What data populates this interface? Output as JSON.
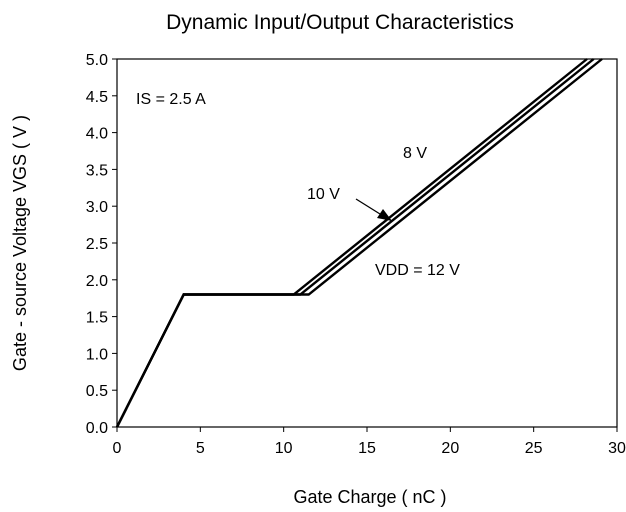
{
  "chart_data": {
    "type": "line",
    "title": "Dynamic Input/Output Characteristics",
    "xlabel": "Gate Charge ( nC )",
    "ylabel": "Gate - source Voltage VGS ( V )",
    "xlim": [
      0,
      30
    ],
    "ylim": [
      0,
      5.0
    ],
    "x_ticks": [
      0,
      5,
      10,
      15,
      20,
      25,
      30
    ],
    "y_ticks": [
      "0.0",
      "0.5",
      "1.0",
      "1.5",
      "2.0",
      "2.5",
      "3.0",
      "3.5",
      "4.0",
      "4.5",
      "5.0"
    ],
    "grid": false,
    "series": [
      {
        "name": "8 V",
        "x": [
          0,
          4,
          10.6,
          28.2
        ],
        "y": [
          0,
          1.8,
          1.8,
          5.0
        ]
      },
      {
        "name": "10 V",
        "x": [
          0,
          4,
          11.0,
          28.6
        ],
        "y": [
          0,
          1.8,
          1.8,
          5.0
        ]
      },
      {
        "name": "VDD = 12 V",
        "x": [
          0,
          4,
          11.5,
          29.1
        ],
        "y": [
          0,
          1.8,
          1.8,
          5.0
        ]
      }
    ],
    "annotations": {
      "condition": "IS = 2.5 A",
      "label_8v": "8 V",
      "label_10v": "10 V",
      "label_12v": "VDD = 12 V"
    }
  }
}
